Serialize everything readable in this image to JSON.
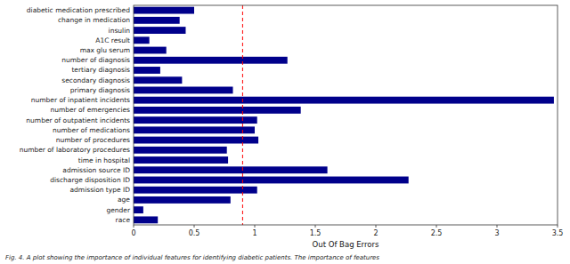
{
  "chart_data": {
    "type": "bar",
    "orientation": "horizontal",
    "categories": [
      "race",
      "gender",
      "age",
      "admission type ID",
      "discharge disposition ID",
      "admission source ID",
      "time in hospital",
      "number of laboratory procedures",
      "number of procedures",
      "number of medications",
      "number of outpatient incidents",
      "number of emergencies",
      "number of inpatient incidents",
      "primary diagnosis",
      "secondary diagnosis",
      "tertiary diagnosis",
      "number of diagnosis",
      "max glu serum",
      "A1C result",
      "insulin",
      "change in medication",
      "diabetic medication prescribed"
    ],
    "values": [
      0.2,
      0.08,
      0.8,
      1.02,
      2.27,
      1.6,
      0.78,
      0.77,
      1.03,
      1.0,
      1.02,
      1.38,
      3.47,
      0.82,
      0.4,
      0.22,
      1.27,
      0.27,
      0.13,
      0.43,
      0.38,
      0.5
    ],
    "color": "#00008B",
    "x_label": "Out Of Bag Errors",
    "xlim": [
      0,
      3.5
    ],
    "xticks": [
      0,
      0.5,
      1,
      1.5,
      2,
      2.5,
      3,
      3.5
    ],
    "grid": false,
    "reference_line": {
      "x": 0.9,
      "color": "red",
      "line_style": "dashed"
    },
    "caption": "Fig. 4. A plot showing the importance of individual features for identifying diabetic patients. The importance of features"
  }
}
